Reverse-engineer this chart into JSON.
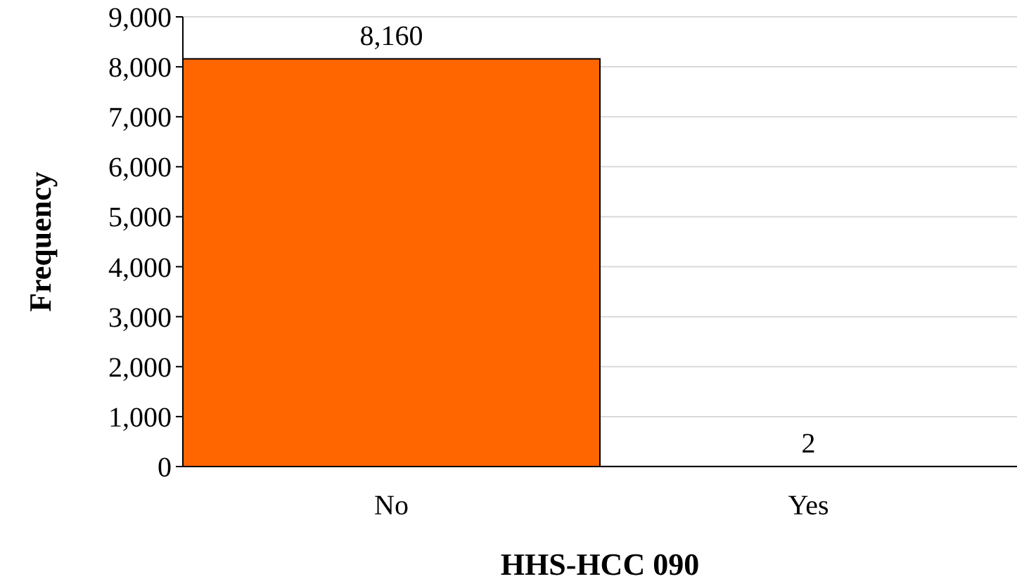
{
  "chart_data": {
    "type": "bar",
    "xlabel": "HHS-HCC 090",
    "ylabel": "Frequency",
    "categories": [
      "No",
      "Yes"
    ],
    "values": [
      8160,
      2
    ],
    "color": "#ff6600",
    "ylim": [
      0,
      9000
    ],
    "yticks": [
      {
        "value": 0,
        "label": "0"
      },
      {
        "value": 1000,
        "label": "1,000"
      },
      {
        "value": 2000,
        "label": "2,000"
      },
      {
        "value": 3000,
        "label": "3,000"
      },
      {
        "value": 4000,
        "label": "4,000"
      },
      {
        "value": 5000,
        "label": "5,000"
      },
      {
        "value": 6000,
        "label": "6,000"
      },
      {
        "value": 7000,
        "label": "7,000"
      },
      {
        "value": 8000,
        "label": "8,000"
      },
      {
        "value": 9000,
        "label": "9,000"
      }
    ],
    "value_labels": [
      "8,160",
      "2"
    ],
    "grid": "y"
  }
}
